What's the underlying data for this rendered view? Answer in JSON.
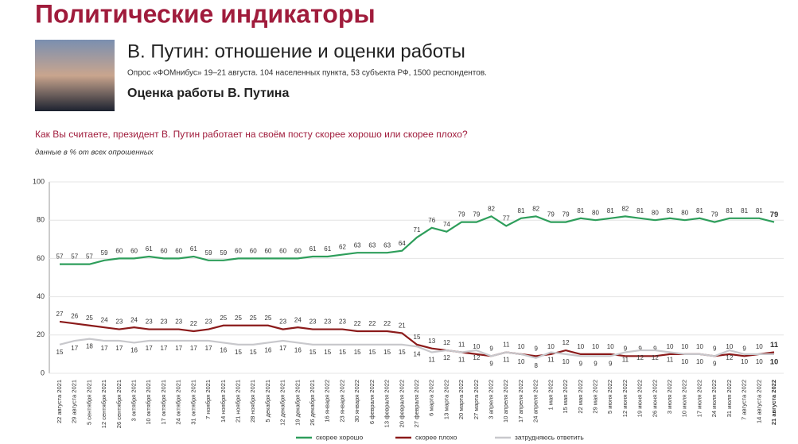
{
  "header": {
    "section": "Политические индикаторы",
    "title": "В. Путин: отношение и оценки работы",
    "subtitle": "Опрос «ФОМнибус» 19–21 августа. 104 населенных пункта, 53 субъекта РФ, 1500 респондентов.",
    "heading": "Оценка работы В. Путина"
  },
  "chart_data": {
    "type": "line",
    "title": "Как Вы считаете, президент В. Путин работает на своём посту скорее хорошо или скорее плохо?",
    "subtitle": "данные в % от всех опрошенных",
    "categories": [
      "22 августа 2021",
      "29 августа 2021",
      "5 сентября 2021",
      "12 сентября 2021",
      "26 сентября 2021",
      "3 октября 2021",
      "10 октября 2021",
      "17 октября 2021",
      "24 октября 2021",
      "31 октября 2021",
      "7 ноября 2021",
      "14 ноября 2021",
      "21 ноября 2021",
      "28 ноября 2021",
      "5 декабря 2021",
      "12 декабря 2021",
      "19 декабря 2021",
      "26 декабря 2021",
      "16 января 2022",
      "23 января 2022",
      "30 января 2022",
      "6 февраля 2022",
      "13 февраля 2022",
      "20 февраля 2022",
      "27 февраля 2022",
      "6 марта 2022",
      "13 марта 2022",
      "20 марта 2022",
      "27 марта 2022",
      "3 апреля 2022",
      "10 апреля 2022",
      "17 апреля 2022",
      "24 апреля 2022",
      "1 мая 2022",
      "15 мая 2022",
      "22 мая 2022",
      "29 мая 2022",
      "5 июня 2022",
      "12 июня 2022",
      "19 июня 2022",
      "26 июня 2022",
      "3 июля 2022",
      "10 июля 2022",
      "17 июля 2022",
      "24 июля 2022",
      "31 июля 2022",
      "7 августа 2022",
      "14 августа 2022",
      "21 августа 2022"
    ],
    "series": [
      {
        "name": "скорее хорошо",
        "color": "#2e9e5b",
        "values": [
          57,
          57,
          57,
          59,
          60,
          60,
          61,
          60,
          60,
          61,
          59,
          59,
          60,
          60,
          60,
          60,
          60,
          61,
          61,
          62,
          63,
          63,
          63,
          64,
          71,
          76,
          74,
          79,
          79,
          82,
          77,
          81,
          82,
          79,
          79,
          81,
          80,
          81,
          82,
          81,
          80,
          81,
          80,
          81,
          79,
          81,
          81,
          81,
          79
        ]
      },
      {
        "name": "скорее плохо",
        "color": "#8b1a1a",
        "values": [
          27,
          26,
          25,
          24,
          23,
          24,
          23,
          23,
          23,
          22,
          23,
          25,
          25,
          25,
          25,
          23,
          24,
          23,
          23,
          23,
          22,
          22,
          22,
          21,
          15,
          13,
          12,
          11,
          10,
          9,
          11,
          10,
          9,
          10,
          12,
          10,
          10,
          10,
          9,
          9,
          9,
          10,
          10,
          10,
          9,
          10,
          9,
          10,
          11
        ]
      },
      {
        "name": "затрудняюсь ответить",
        "color": "#c8c8cc",
        "values": [
          15,
          17,
          18,
          17,
          17,
          16,
          17,
          17,
          17,
          17,
          17,
          16,
          15,
          15,
          16,
          17,
          16,
          15,
          15,
          15,
          15,
          15,
          15,
          15,
          14,
          11,
          12,
          11,
          12,
          9,
          11,
          10,
          8,
          11,
          10,
          9,
          9,
          9,
          11,
          12,
          12,
          11,
          10,
          10,
          9,
          12,
          10,
          10,
          10
        ]
      }
    ],
    "ylim": [
      0,
      100
    ],
    "yticks": [
      0,
      20,
      40,
      60,
      80,
      100
    ],
    "grid": true
  }
}
